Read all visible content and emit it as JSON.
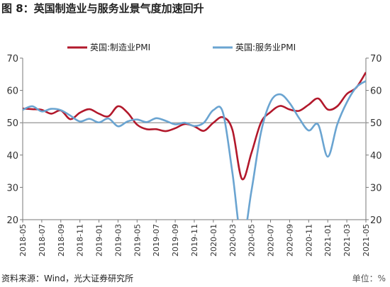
{
  "figure": {
    "title": "图 8：英国制造业与服务业景气度加速回升",
    "source": "资料来源：Wind，光大证券研究所",
    "unit": "单位：%"
  },
  "colors": {
    "manufacturing": "#b2182b",
    "services": "#6aa4d1",
    "reference": "#a6a6a6",
    "axis": "#777777"
  },
  "chart_data": {
    "type": "line",
    "title": "",
    "xlabel": "",
    "ylabel": "",
    "ylim": [
      20,
      70
    ],
    "yticks": [
      20,
      30,
      40,
      50,
      60,
      70
    ],
    "reference_line": 50,
    "legend_position": "top",
    "grid": false,
    "x": [
      "2018-05",
      "2018-06",
      "2018-07",
      "2018-08",
      "2018-09",
      "2018-10",
      "2018-11",
      "2018-12",
      "2019-01",
      "2019-02",
      "2019-03",
      "2019-04",
      "2019-05",
      "2019-06",
      "2019-07",
      "2019-08",
      "2019-09",
      "2019-10",
      "2019-11",
      "2019-12",
      "2020-01",
      "2020-02",
      "2020-03",
      "2020-04",
      "2020-05",
      "2020-06",
      "2020-07",
      "2020-08",
      "2020-09",
      "2020-10",
      "2020-11",
      "2020-12",
      "2021-01",
      "2021-02",
      "2021-03",
      "2021-04",
      "2021-05"
    ],
    "xtick_labels": [
      "2018-05",
      "2018-07",
      "2018-09",
      "2018-11",
      "2019-01",
      "2019-03",
      "2019-05",
      "2019-07",
      "2019-09",
      "2019-11",
      "2020-01",
      "2020-03",
      "2020-05",
      "2020-07",
      "2020-09",
      "2020-11",
      "2021-01",
      "2021-03",
      "2021-05"
    ],
    "series": [
      {
        "name": "英国:制造业PMI",
        "values": [
          54.4,
          54.2,
          54.0,
          52.8,
          53.8,
          51.1,
          53.1,
          54.2,
          52.8,
          52.0,
          55.1,
          53.1,
          49.4,
          48.0,
          48.0,
          47.4,
          48.3,
          49.6,
          48.9,
          47.5,
          50.0,
          51.7,
          47.8,
          32.6,
          40.7,
          50.1,
          53.3,
          55.2,
          54.1,
          53.7,
          55.6,
          57.5,
          54.1,
          55.1,
          58.9,
          60.9,
          65.6
        ]
      },
      {
        "name": "英国:服务业PMI",
        "values": [
          54.0,
          55.1,
          53.5,
          54.3,
          53.9,
          52.2,
          50.4,
          51.2,
          50.1,
          51.3,
          48.9,
          50.4,
          51.0,
          50.2,
          51.4,
          50.6,
          49.5,
          50.0,
          49.0,
          50.0,
          53.9,
          53.2,
          34.5,
          13.4,
          29.0,
          47.1,
          56.5,
          58.8,
          56.1,
          51.4,
          47.6,
          49.4,
          39.5,
          49.5,
          56.3,
          61.0,
          62.9
        ]
      }
    ]
  }
}
